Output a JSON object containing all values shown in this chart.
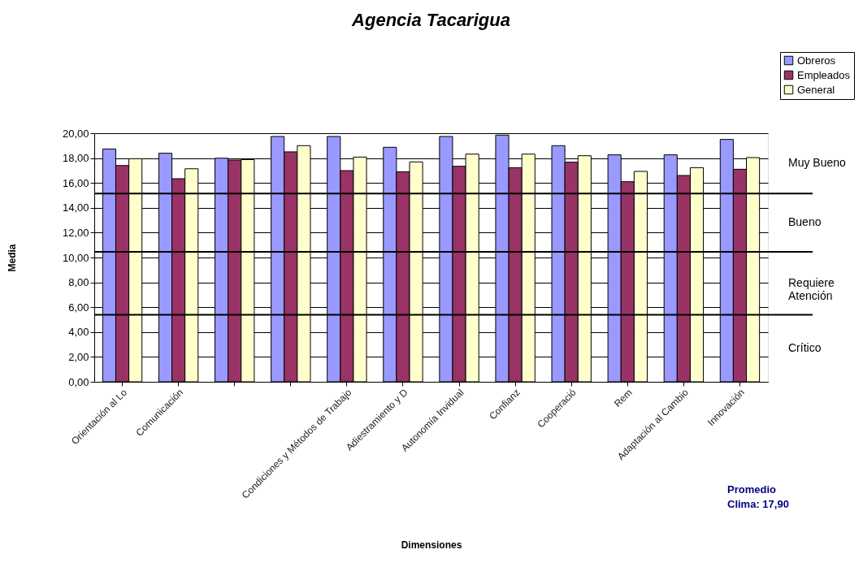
{
  "chart_data": {
    "type": "bar",
    "title": "Agencia Tacarigua",
    "xlabel": "Dimensiones",
    "ylabel": "Media",
    "categories": [
      "Orientación al Lo",
      "Comunicación",
      null,
      null,
      "Condiciones y Métodos de Trabajo",
      "Adiestramiento y D",
      "Autonomía Invidual",
      "Confianz",
      "Cooperació",
      "Rem",
      "Adaptación al Cambio",
      "Innovación"
    ],
    "series": [
      {
        "name": "Obreros",
        "color": "#9999ff",
        "values": [
          18.73,
          18.39,
          17.99,
          19.74,
          19.74,
          18.87,
          19.74,
          19.85,
          19.0,
          18.26,
          18.26,
          19.5
        ]
      },
      {
        "name": "Empleados",
        "color": "#993366",
        "values": [
          17.4,
          16.34,
          17.84,
          18.5,
          16.99,
          16.9,
          17.34,
          17.23,
          17.67,
          16.1,
          16.6,
          17.1
        ]
      },
      {
        "name": "General",
        "color": "#ffffcc",
        "values": [
          17.95,
          17.14,
          17.88,
          19.0,
          18.08,
          17.69,
          18.32,
          18.32,
          18.19,
          16.93,
          17.23,
          18.04
        ]
      }
    ],
    "ylim": [
      0,
      20
    ],
    "yticks": [
      {
        "value": 0,
        "label": "0,00"
      },
      {
        "value": 2,
        "label": "2,00"
      },
      {
        "value": 4,
        "label": "4,00"
      },
      {
        "value": 6,
        "label": "6,00"
      },
      {
        "value": 8,
        "label": "8,00"
      },
      {
        "value": 10,
        "label": "10,00"
      },
      {
        "value": 12,
        "label": "12,00"
      },
      {
        "value": 14,
        "label": "14,00"
      },
      {
        "value": 16,
        "label": "16,00"
      },
      {
        "value": 18,
        "label": "18,00"
      },
      {
        "value": 20,
        "label": "20,00"
      }
    ],
    "grid": "y",
    "legend": "top right",
    "ref_lines": [
      {
        "axis": "y",
        "value": 15.15,
        "color": "#000000"
      },
      {
        "axis": "y",
        "value": 10.45,
        "color": "#000000"
      },
      {
        "axis": "y",
        "value": 5.4,
        "color": "#000000"
      }
    ],
    "annotations": [
      "Muy Bueno",
      "Bueno",
      "Requiere\nAtención",
      "Crítico",
      "Promedio\nClima: 17,90"
    ]
  }
}
